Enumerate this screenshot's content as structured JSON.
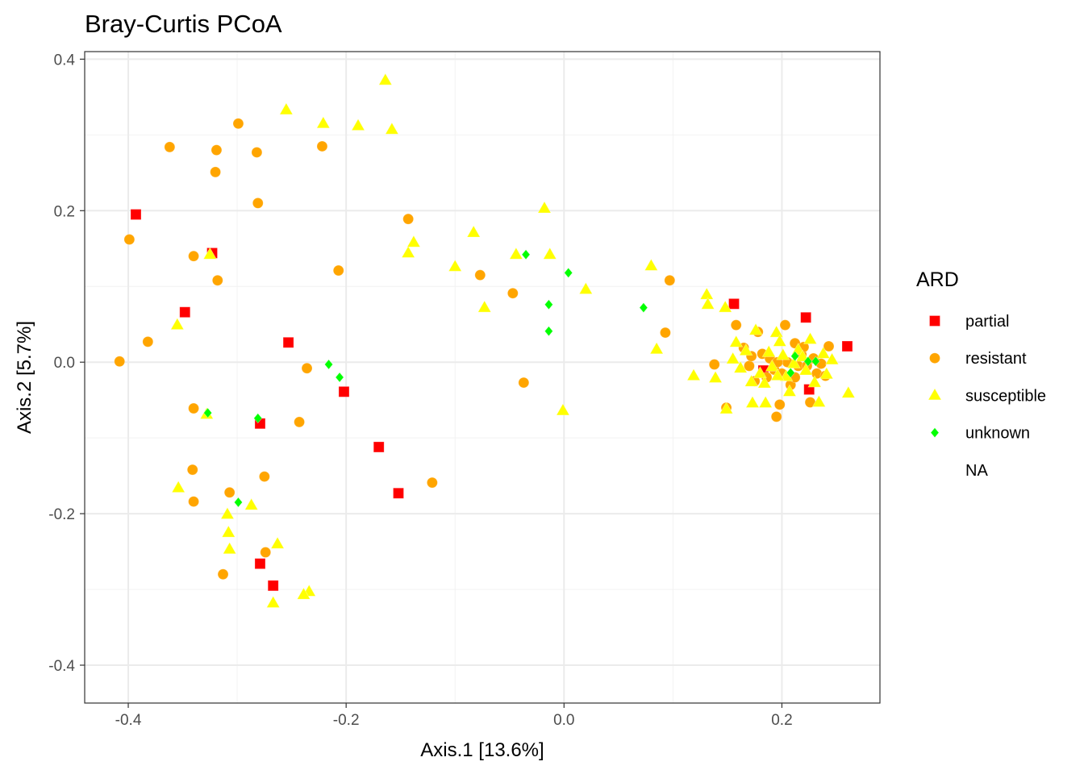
{
  "chart_data": {
    "type": "scatter",
    "title": "Bray-Curtis PCoA",
    "xlabel": "Axis.1   [13.6%]",
    "ylabel": "Axis.2   [5.7%]",
    "xlim": [
      -0.44,
      0.29
    ],
    "ylim": [
      -0.45,
      0.41
    ],
    "x_ticks": [
      -0.4,
      -0.2,
      0.0,
      0.2
    ],
    "x_tick_labels": [
      "-0.4",
      "-0.2",
      "0.0",
      "0.2"
    ],
    "y_ticks": [
      -0.4,
      -0.2,
      0.0,
      0.2,
      0.4
    ],
    "y_tick_labels": [
      "-0.4",
      "-0.2",
      "0.0",
      "0.2",
      "0.4"
    ],
    "grid": true,
    "legend": {
      "title": "ARD",
      "placement": "right",
      "entries": [
        "partial",
        "resistant",
        "susceptible",
        "unknown",
        "NA"
      ]
    },
    "series": [
      {
        "name": "partial",
        "shape": "square",
        "color": "#ff0000",
        "points": [
          [
            -0.393,
            0.195
          ],
          [
            -0.323,
            0.144
          ],
          [
            -0.348,
            0.066
          ],
          [
            -0.253,
            0.026
          ],
          [
            -0.202,
            -0.039
          ],
          [
            -0.279,
            -0.081
          ],
          [
            -0.17,
            -0.112
          ],
          [
            -0.152,
            -0.173
          ],
          [
            -0.279,
            -0.266
          ],
          [
            -0.267,
            -0.295
          ],
          [
            0.156,
            0.077
          ],
          [
            0.183,
            -0.011
          ],
          [
            0.222,
            0.059
          ],
          [
            0.225,
            -0.036
          ],
          [
            0.26,
            0.021
          ]
        ]
      },
      {
        "name": "resistant",
        "shape": "circle",
        "color": "#ffa500",
        "points": [
          [
            -0.408,
            0.001
          ],
          [
            -0.399,
            0.162
          ],
          [
            -0.382,
            0.027
          ],
          [
            -0.362,
            0.284
          ],
          [
            -0.34,
            0.14
          ],
          [
            -0.34,
            -0.061
          ],
          [
            -0.341,
            -0.142
          ],
          [
            -0.34,
            -0.184
          ],
          [
            -0.319,
            0.28
          ],
          [
            -0.32,
            0.251
          ],
          [
            -0.318,
            0.108
          ],
          [
            -0.299,
            0.315
          ],
          [
            -0.282,
            0.277
          ],
          [
            -0.281,
            0.21
          ],
          [
            -0.307,
            -0.172
          ],
          [
            -0.275,
            -0.151
          ],
          [
            -0.274,
            -0.251
          ],
          [
            -0.313,
            -0.28
          ],
          [
            -0.222,
            0.285
          ],
          [
            -0.207,
            0.121
          ],
          [
            -0.236,
            -0.008
          ],
          [
            -0.243,
            -0.079
          ],
          [
            -0.143,
            0.189
          ],
          [
            -0.121,
            -0.159
          ],
          [
            -0.077,
            0.115
          ],
          [
            -0.047,
            0.091
          ],
          [
            -0.037,
            -0.027
          ],
          [
            0.097,
            0.108
          ],
          [
            0.093,
            0.039
          ],
          [
            0.138,
            -0.003
          ],
          [
            0.149,
            -0.06
          ],
          [
            0.158,
            0.049
          ],
          [
            0.165,
            0.019
          ],
          [
            0.17,
            -0.005
          ],
          [
            0.175,
            -0.025
          ],
          [
            0.178,
            0.04
          ],
          [
            0.182,
            0.011
          ],
          [
            0.186,
            -0.02
          ],
          [
            0.189,
            0.005
          ],
          [
            0.193,
            -0.01
          ],
          [
            0.195,
            -0.072
          ],
          [
            0.198,
            -0.056
          ],
          [
            0.2,
            -0.015
          ],
          [
            0.203,
            0.049
          ],
          [
            0.205,
            0.0
          ],
          [
            0.208,
            -0.03
          ],
          [
            0.212,
            0.025
          ],
          [
            0.215,
            -0.005
          ],
          [
            0.218,
            0.01
          ],
          [
            0.22,
            0.02
          ],
          [
            0.223,
            -0.005
          ],
          [
            0.226,
            -0.053
          ],
          [
            0.229,
            0.005
          ],
          [
            0.232,
            -0.015
          ],
          [
            0.236,
            -0.002
          ],
          [
            0.24,
            -0.018
          ],
          [
            0.243,
            0.021
          ],
          [
            0.196,
            0.0
          ],
          [
            0.212,
            -0.02
          ],
          [
            0.172,
            0.008
          ]
        ]
      },
      {
        "name": "susceptible",
        "shape": "triangle",
        "color": "#ffff00",
        "points": [
          [
            -0.164,
            0.372
          ],
          [
            -0.255,
            0.333
          ],
          [
            -0.221,
            0.315
          ],
          [
            -0.189,
            0.312
          ],
          [
            -0.158,
            0.307
          ],
          [
            -0.355,
            0.049
          ],
          [
            -0.325,
            0.142
          ],
          [
            -0.328,
            -0.069
          ],
          [
            -0.354,
            -0.166
          ],
          [
            -0.309,
            -0.201
          ],
          [
            -0.308,
            -0.225
          ],
          [
            -0.307,
            -0.247
          ],
          [
            -0.287,
            -0.189
          ],
          [
            -0.263,
            -0.24
          ],
          [
            -0.267,
            -0.318
          ],
          [
            -0.234,
            -0.303
          ],
          [
            -0.239,
            -0.307
          ],
          [
            -0.143,
            0.144
          ],
          [
            -0.138,
            0.158
          ],
          [
            -0.1,
            0.126
          ],
          [
            -0.083,
            0.171
          ],
          [
            -0.073,
            0.072
          ],
          [
            -0.044,
            0.142
          ],
          [
            -0.018,
            0.203
          ],
          [
            -0.013,
            0.142
          ],
          [
            0.02,
            0.096
          ],
          [
            -0.001,
            -0.064
          ],
          [
            0.08,
            0.127
          ],
          [
            0.085,
            0.017
          ],
          [
            0.119,
            -0.018
          ],
          [
            0.131,
            0.089
          ],
          [
            0.132,
            0.076
          ],
          [
            0.139,
            -0.021
          ],
          [
            0.148,
            0.072
          ],
          [
            0.149,
            -0.062
          ],
          [
            0.155,
            0.004
          ],
          [
            0.158,
            0.026
          ],
          [
            0.162,
            -0.008
          ],
          [
            0.167,
            0.015
          ],
          [
            0.172,
            -0.026
          ],
          [
            0.176,
            0.042
          ],
          [
            0.18,
            -0.015
          ],
          [
            0.184,
            -0.028
          ],
          [
            0.188,
            0.013
          ],
          [
            0.191,
            -0.006
          ],
          [
            0.195,
            0.039
          ],
          [
            0.198,
            0.027
          ],
          [
            0.201,
            0.009
          ],
          [
            0.204,
            -0.019
          ],
          [
            0.207,
            -0.039
          ],
          [
            0.211,
            -0.002
          ],
          [
            0.215,
            0.016
          ],
          [
            0.219,
            0.007
          ],
          [
            0.222,
            -0.011
          ],
          [
            0.226,
            0.03
          ],
          [
            0.23,
            -0.027
          ],
          [
            0.234,
            -0.053
          ],
          [
            0.238,
            0.011
          ],
          [
            0.241,
            -0.016
          ],
          [
            0.246,
            0.003
          ],
          [
            0.261,
            -0.041
          ],
          [
            0.173,
            -0.054
          ],
          [
            0.185,
            -0.054
          ],
          [
            0.196,
            -0.018
          ]
        ]
      },
      {
        "name": "unknown",
        "shape": "diamond",
        "color": "#00ff00",
        "points": [
          [
            -0.035,
            0.142
          ],
          [
            0.004,
            0.118
          ],
          [
            -0.014,
            0.076
          ],
          [
            -0.014,
            0.041
          ],
          [
            0.073,
            0.072
          ],
          [
            -0.216,
            -0.003
          ],
          [
            -0.206,
            -0.02
          ],
          [
            -0.327,
            -0.067
          ],
          [
            -0.281,
            -0.074
          ],
          [
            -0.299,
            -0.185
          ],
          [
            0.208,
            -0.014
          ],
          [
            0.212,
            0.008
          ],
          [
            0.224,
            0.001
          ],
          [
            0.231,
            0.001
          ]
        ]
      }
    ]
  }
}
